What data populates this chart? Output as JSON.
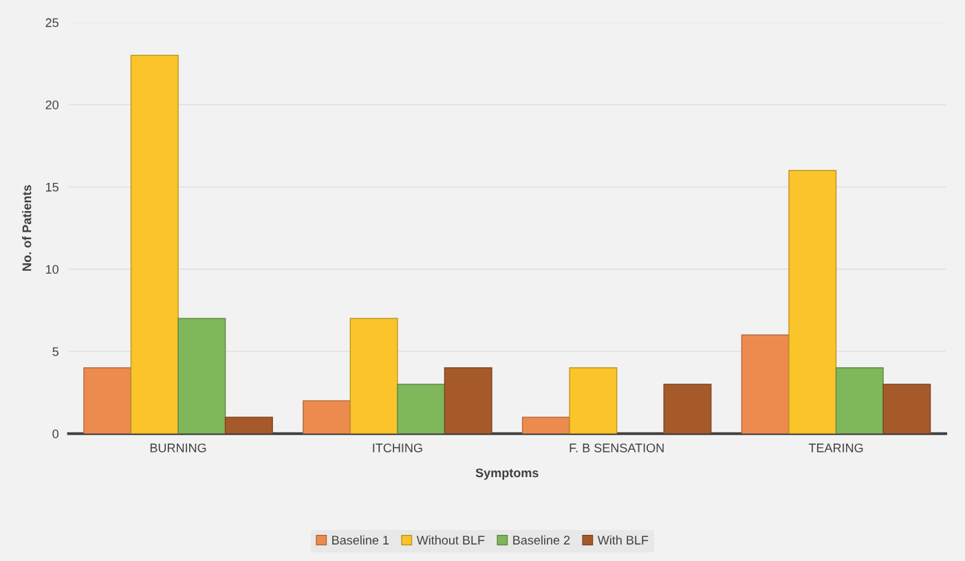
{
  "chart_data": {
    "type": "bar",
    "xlabel": "Symptoms",
    "ylabel": "No. of Patients",
    "categories": [
      "BURNING",
      "ITCHING",
      "F. B SENSATION",
      "TEARING"
    ],
    "series": [
      {
        "name": "Baseline 1",
        "color": "#ed8b4f",
        "values": [
          4,
          2,
          1,
          6
        ]
      },
      {
        "name": "Without BLF",
        "color": "#fbc42a",
        "values": [
          23,
          7,
          4,
          16
        ]
      },
      {
        "name": "Baseline 2",
        "color": "#7fb75b",
        "values": [
          7,
          3,
          0,
          4
        ]
      },
      {
        "name": "With BLF",
        "color": "#a65a2a",
        "values": [
          1,
          4,
          3,
          3
        ]
      }
    ],
    "ylim": [
      0,
      25
    ],
    "yticks": [
      0,
      5,
      10,
      15,
      20,
      25
    ],
    "grid": "y",
    "legend": "bottom"
  }
}
